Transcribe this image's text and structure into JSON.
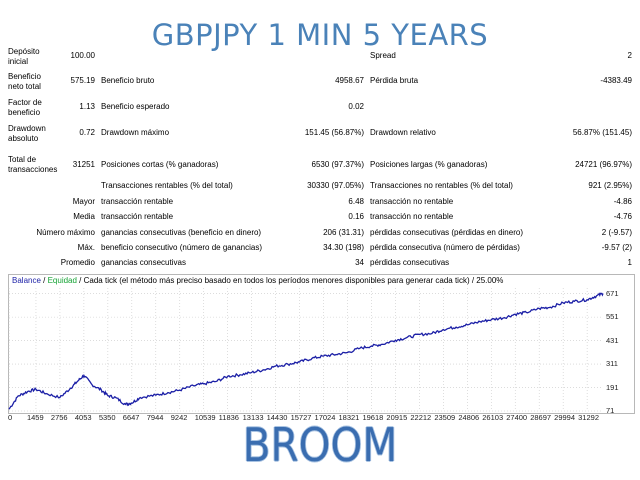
{
  "banner": "GBPJPY 1 MIN 5 YEARS",
  "footer": "BROOM",
  "report": {
    "deposit_label": "Depósito inicial",
    "deposit_value": "100.00",
    "spread_label": "Spread",
    "spread_value": "2",
    "net_profit_label": "Beneficio neto total",
    "net_profit_value": "575.19",
    "gross_profit_label": "Beneficio bruto",
    "gross_profit_value": "4958.67",
    "gross_loss_label": "Pérdida bruta",
    "gross_loss_value": "-4383.49",
    "profit_factor_label": "Factor de beneficio",
    "profit_factor_value": "1.13",
    "expected_payoff_label": "Beneficio esperado",
    "expected_payoff_value": "0.02",
    "abs_drawdown_label": "Drawdown absoluto",
    "abs_drawdown_value": "0.72",
    "max_drawdown_label": "Drawdown máximo",
    "max_drawdown_value": "151.45 (56.87%)",
    "rel_drawdown_label": "Drawdown relativo",
    "rel_drawdown_value": "56.87% (151.45)",
    "total_trades_label": "Total de transacciones",
    "total_trades_value": "31251",
    "short_positions_label": "Posiciones cortas (% ganadoras)",
    "short_positions_value": "6530 (97.37%)",
    "long_positions_label": "Posiciones largas (% ganadoras)",
    "long_positions_value": "24721 (96.97%)",
    "profit_trades_label": "Transacciones rentables (% del total)",
    "profit_trades_value": "30330 (97.05%)",
    "loss_trades_label": "Transacciones no rentables (% del total)",
    "loss_trades_value": "921 (2.95%)",
    "largest_label": "Mayor",
    "largest_profit_label": "transacción rentable",
    "largest_profit_value": "6.48",
    "largest_loss_label": "transacción no rentable",
    "largest_loss_value": "-4.86",
    "average_label": "Media",
    "average_profit_label": "transacción rentable",
    "average_profit_value": "0.16",
    "average_loss_label": "transacción no rentable",
    "average_loss_value": "-4.76",
    "max_number_label": "Número máximo",
    "max_consec_wins_label": "ganancias consecutivas (beneficio en dinero)",
    "max_consec_wins_value": "206 (31.31)",
    "max_consec_losses_label": "pérdidas consecutivas (pérdidas en dinero)",
    "max_consec_losses_value": "2 (-9.57)",
    "max_label": "Máx.",
    "max_consec_profit_label": "beneficio consecutivo (número de ganancias)",
    "max_consec_profit_value": "34.30 (198)",
    "max_consec_loss_label": "pérdida consecutiva (número de pérdidas)",
    "max_consec_loss_value": "-9.57 (2)",
    "avg_label": "Promedio",
    "avg_consec_wins_label": "ganancias consecutivas",
    "avg_consec_wins_value": "34",
    "avg_consec_losses_label": "pérdidas consecutivas",
    "avg_consec_losses_value": "1"
  },
  "legend": {
    "balance": "Balance",
    "separator1": " / ",
    "equity": "Equidad",
    "separator2": " / ",
    "description": "Cada tick (el método más preciso basado en todos los períodos menores disponibles para generar cada tick) / 25.00%"
  },
  "colors": {
    "balance_line": "#1b1fa6",
    "equity_label": "#15a334",
    "banner": "#4a82b8",
    "footer": "#3a6db0",
    "grid": "#c8c8c8"
  },
  "chart_data": {
    "type": "line",
    "series": [
      {
        "name": "Balance",
        "x": [
          0,
          500,
          1000,
          1459,
          2000,
          2756,
          3300,
          3700,
          4053,
          4500,
          5000,
          5350,
          5800,
          6300,
          6647,
          7100,
          7944,
          8600,
          9242,
          10000,
          10539,
          11200,
          11836,
          12500,
          13133,
          13800,
          14430,
          15100,
          15727,
          16400,
          17024,
          17700,
          18321,
          19000,
          19618,
          20200,
          20915,
          21500,
          22212,
          22900,
          23509,
          24200,
          24806,
          25500,
          26103,
          26800,
          27400,
          28000,
          28697,
          29300,
          29994,
          30600,
          31292,
          31800,
          32150
        ],
        "values": [
          80,
          148,
          170,
          182,
          160,
          140,
          185,
          222,
          253,
          205,
          178,
          150,
          138,
          105,
          112,
          140,
          152,
          165,
          178,
          200,
          210,
          222,
          248,
          256,
          268,
          282,
          300,
          310,
          322,
          340,
          352,
          360,
          370,
          392,
          403,
          412,
          433,
          445,
          462,
          468,
          488,
          500,
          512,
          528,
          538,
          548,
          566,
          575,
          595,
          602,
          624,
          632,
          640,
          660,
          672
        ]
      }
    ],
    "x_ticks": [
      0,
      1459,
      2756,
      4053,
      5350,
      6647,
      7944,
      9242,
      10539,
      11836,
      13133,
      14430,
      15727,
      17024,
      18321,
      19618,
      20915,
      22212,
      23509,
      24806,
      26103,
      27400,
      28697,
      29994,
      31292
    ],
    "y_ticks": [
      671,
      551,
      431,
      311,
      191,
      71
    ],
    "xlim": [
      0,
      32150
    ],
    "ylim": [
      71,
      700
    ],
    "grid": true,
    "legend": "top-left"
  }
}
